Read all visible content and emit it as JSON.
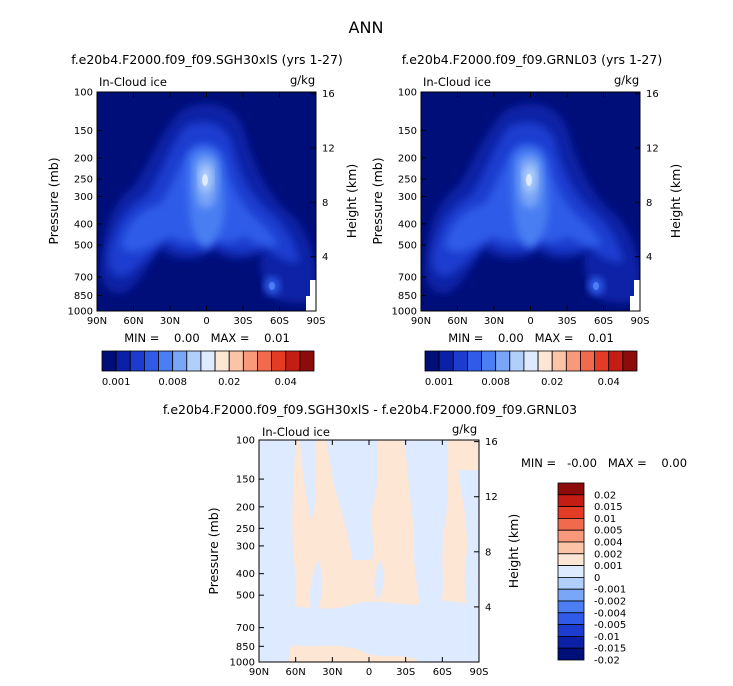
{
  "chart_data": [
    {
      "type": "heatmap",
      "title": "f.e20b4.F2000.f09_f09.SGH30xlS (yrs 1-27)",
      "field_label": "In-Cloud ice",
      "units": "g/kg",
      "xlabel": "",
      "ylabel": "Pressure (mb)",
      "y2label": "Height (km)",
      "x_ticks": [
        "90N",
        "60N",
        "30N",
        "0",
        "30S",
        "60S",
        "90S"
      ],
      "y_ticks": [
        100,
        150,
        200,
        250,
        300,
        400,
        500,
        700,
        850,
        1000
      ],
      "y2_ticks": [
        4,
        8,
        12,
        16
      ],
      "min_max": "MIN =    0.00   MAX =    0.01",
      "colorbar_labels": [
        "0.001",
        "0.008",
        "0.02",
        "0.04"
      ],
      "colorbar_colors": [
        "#000e7a",
        "#0b20a6",
        "#1b3ccf",
        "#2f5be8",
        "#4a7ef2",
        "#7aa6f7",
        "#b0cffa",
        "#ddeaff",
        "#fde6d3",
        "#fbc4a6",
        "#f7997a",
        "#f26a4d",
        "#e43b25",
        "#c41d14",
        "#8e0b0b"
      ]
    },
    {
      "type": "heatmap",
      "title": "f.e20b4.F2000.f09_f09.GRNL03 (yrs 1-27)",
      "field_label": "In-Cloud ice",
      "units": "g/kg",
      "xlabel": "",
      "ylabel": "Pressure (mb)",
      "y2label": "Height (km)",
      "x_ticks": [
        "90N",
        "60N",
        "30N",
        "0",
        "30S",
        "60S",
        "90S"
      ],
      "y_ticks": [
        100,
        150,
        200,
        250,
        300,
        400,
        500,
        700,
        850,
        1000
      ],
      "y2_ticks": [
        4,
        8,
        12,
        16
      ],
      "min_max": "MIN =    0.00   MAX =    0.01",
      "colorbar_labels": [
        "0.001",
        "0.008",
        "0.02",
        "0.04"
      ],
      "colorbar_colors": [
        "#000e7a",
        "#0b20a6",
        "#1b3ccf",
        "#2f5be8",
        "#4a7ef2",
        "#7aa6f7",
        "#b0cffa",
        "#ddeaff",
        "#fde6d3",
        "#fbc4a6",
        "#f7997a",
        "#f26a4d",
        "#e43b25",
        "#c41d14",
        "#8e0b0b"
      ]
    },
    {
      "type": "heatmap",
      "title": "f.e20b4.F2000.f09_f09.SGH30xlS - f.e20b4.F2000.f09_f09.GRNL03",
      "field_label": "In-Cloud ice",
      "units": "g/kg",
      "xlabel": "",
      "ylabel": "Pressure (mb)",
      "y2label": "Height (km)",
      "x_ticks": [
        "90N",
        "60N",
        "30N",
        "0",
        "30S",
        "60S",
        "90S"
      ],
      "y_ticks": [
        100,
        150,
        200,
        250,
        300,
        400,
        500,
        700,
        850,
        1000
      ],
      "y2_ticks": [
        4,
        8,
        12,
        16
      ],
      "min_max": "MIN =   -0.00   MAX =    0.00",
      "colorbar_labels": [
        "0.02",
        "0.015",
        "0.01",
        "0.005",
        "0.004",
        "0.002",
        "0.001",
        "0",
        "-0.001",
        "-0.002",
        "-0.004",
        "-0.005",
        "-0.01",
        "-0.015",
        "-0.02"
      ],
      "colorbar_colors": [
        "#8e0b0b",
        "#c41d14",
        "#e43b25",
        "#f26a4d",
        "#f7997a",
        "#fbc4a6",
        "#fde6d3",
        "#ddeaff",
        "#b0cffa",
        "#7aa6f7",
        "#4a7ef2",
        "#2f5be8",
        "#1b3ccf",
        "#0b20a6",
        "#000e7a"
      ]
    }
  ],
  "page": {
    "main_title": "ANN"
  }
}
